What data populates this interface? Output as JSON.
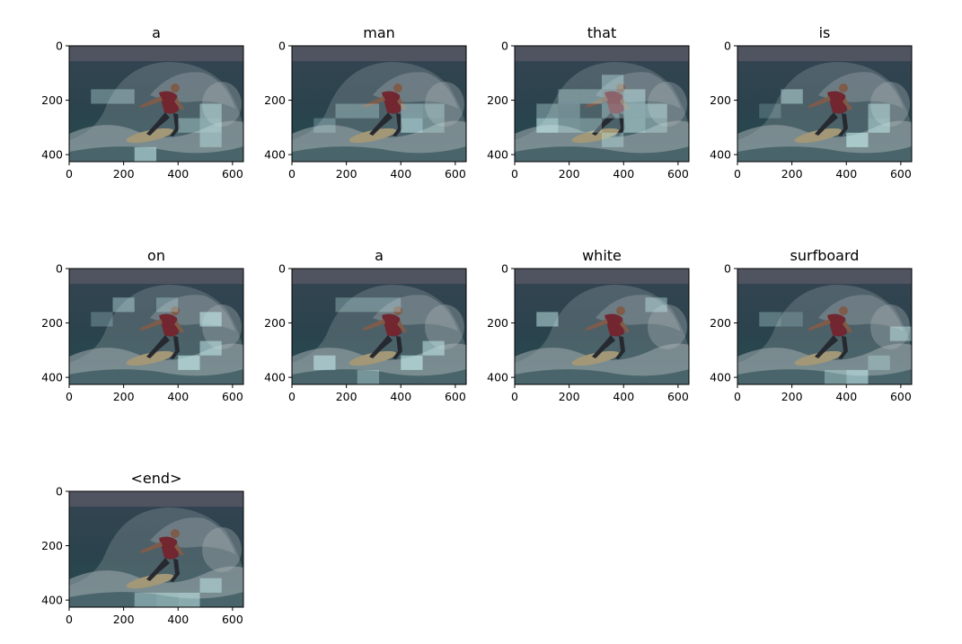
{
  "figure": {
    "background": "#ffffff"
  },
  "chart_data": {
    "type": "heatmap",
    "description_kind": "attention-overlay-grid",
    "rows": 3,
    "cols": 4,
    "xlim": [
      0,
      640
    ],
    "ylim": [
      426,
      0
    ],
    "xticks": [
      0,
      200,
      400,
      600
    ],
    "yticks": [
      0,
      200,
      400
    ],
    "grid": false,
    "image": {
      "scene": "surfer on a white surfboard riding a wave",
      "colors": {
        "sky": "#5f5f6d",
        "sea": "#2f4b55",
        "foam": "#a9b7ba",
        "surfer_shirt": "#8a2630",
        "surfer_skin": "#9c6a50",
        "board": "#c8b68a",
        "dim_overlay": "#1a2a30"
      }
    },
    "highlight_color": "#c9f1f2",
    "grid_cell": {
      "width": 80,
      "height": 53.25
    },
    "panels": [
      {
        "word": "a",
        "highlights": [
          {
            "col": 1,
            "row": 3,
            "a": 0.35
          },
          {
            "col": 2,
            "row": 3,
            "a": 0.35
          },
          {
            "col": 6,
            "row": 4,
            "a": 0.45
          },
          {
            "col": 5,
            "row": 5,
            "a": 0.35
          },
          {
            "col": 6,
            "row": 5,
            "a": 0.5
          },
          {
            "col": 6,
            "row": 6,
            "a": 0.4
          },
          {
            "col": 3,
            "row": 7,
            "a": 0.55
          }
        ]
      },
      {
        "word": "man",
        "highlights": [
          {
            "col": 2,
            "row": 4,
            "a": 0.3
          },
          {
            "col": 3,
            "row": 4,
            "a": 0.3
          },
          {
            "col": 5,
            "row": 4,
            "a": 0.4
          },
          {
            "col": 6,
            "row": 4,
            "a": 0.35
          },
          {
            "col": 1,
            "row": 5,
            "a": 0.25
          },
          {
            "col": 5,
            "row": 5,
            "a": 0.55
          },
          {
            "col": 6,
            "row": 5,
            "a": 0.3
          }
        ]
      },
      {
        "word": "that",
        "highlights": [
          {
            "col": 4,
            "row": 2,
            "a": 0.4
          },
          {
            "col": 2,
            "row": 3,
            "a": 0.35
          },
          {
            "col": 3,
            "row": 3,
            "a": 0.35
          },
          {
            "col": 4,
            "row": 3,
            "a": 0.3
          },
          {
            "col": 5,
            "row": 3,
            "a": 0.45
          },
          {
            "col": 1,
            "row": 4,
            "a": 0.35
          },
          {
            "col": 2,
            "row": 4,
            "a": 0.3
          },
          {
            "col": 4,
            "row": 4,
            "a": 0.35
          },
          {
            "col": 5,
            "row": 4,
            "a": 0.5
          },
          {
            "col": 6,
            "row": 4,
            "a": 0.45
          },
          {
            "col": 1,
            "row": 5,
            "a": 0.6
          },
          {
            "col": 2,
            "row": 5,
            "a": 0.35
          },
          {
            "col": 3,
            "row": 5,
            "a": 0.3
          },
          {
            "col": 5,
            "row": 5,
            "a": 0.5
          },
          {
            "col": 6,
            "row": 5,
            "a": 0.35
          },
          {
            "col": 4,
            "row": 6,
            "a": 0.35
          }
        ]
      },
      {
        "word": "is",
        "highlights": [
          {
            "col": 2,
            "row": 3,
            "a": 0.45
          },
          {
            "col": 1,
            "row": 4,
            "a": 0.2
          },
          {
            "col": 6,
            "row": 4,
            "a": 0.45
          },
          {
            "col": 6,
            "row": 5,
            "a": 0.5
          },
          {
            "col": 5,
            "row": 6,
            "a": 0.6
          }
        ]
      },
      {
        "word": "on",
        "highlights": [
          {
            "col": 2,
            "row": 2,
            "a": 0.4
          },
          {
            "col": 4,
            "row": 2,
            "a": 0.3
          },
          {
            "col": 1,
            "row": 3,
            "a": 0.25
          },
          {
            "col": 6,
            "row": 3,
            "a": 0.55
          },
          {
            "col": 6,
            "row": 5,
            "a": 0.5
          },
          {
            "col": 5,
            "row": 6,
            "a": 0.6
          }
        ]
      },
      {
        "word": "a",
        "highlights": [
          {
            "col": 2,
            "row": 2,
            "a": 0.3
          },
          {
            "col": 3,
            "row": 2,
            "a": 0.3
          },
          {
            "col": 4,
            "row": 2,
            "a": 0.3
          },
          {
            "col": 6,
            "row": 5,
            "a": 0.5
          },
          {
            "col": 1,
            "row": 6,
            "a": 0.55
          },
          {
            "col": 5,
            "row": 6,
            "a": 0.6
          },
          {
            "col": 3,
            "row": 7,
            "a": 0.35
          }
        ]
      },
      {
        "word": "white",
        "highlights": [
          {
            "col": 6,
            "row": 2,
            "a": 0.4
          },
          {
            "col": 1,
            "row": 3,
            "a": 0.5
          }
        ]
      },
      {
        "word": "surfboard",
        "highlights": [
          {
            "col": 1,
            "row": 3,
            "a": 0.3
          },
          {
            "col": 2,
            "row": 3,
            "a": 0.2
          },
          {
            "col": 7,
            "row": 4,
            "a": 0.45
          },
          {
            "col": 6,
            "row": 6,
            "a": 0.3
          },
          {
            "col": 4,
            "row": 7,
            "a": 0.35
          },
          {
            "col": 5,
            "row": 7,
            "a": 0.55
          }
        ]
      },
      {
        "word": "<end>",
        "highlights": [
          {
            "col": 6,
            "row": 6,
            "a": 0.45
          },
          {
            "col": 3,
            "row": 7,
            "a": 0.4
          },
          {
            "col": 4,
            "row": 7,
            "a": 0.45
          },
          {
            "col": 5,
            "row": 7,
            "a": 0.5
          }
        ]
      }
    ]
  }
}
